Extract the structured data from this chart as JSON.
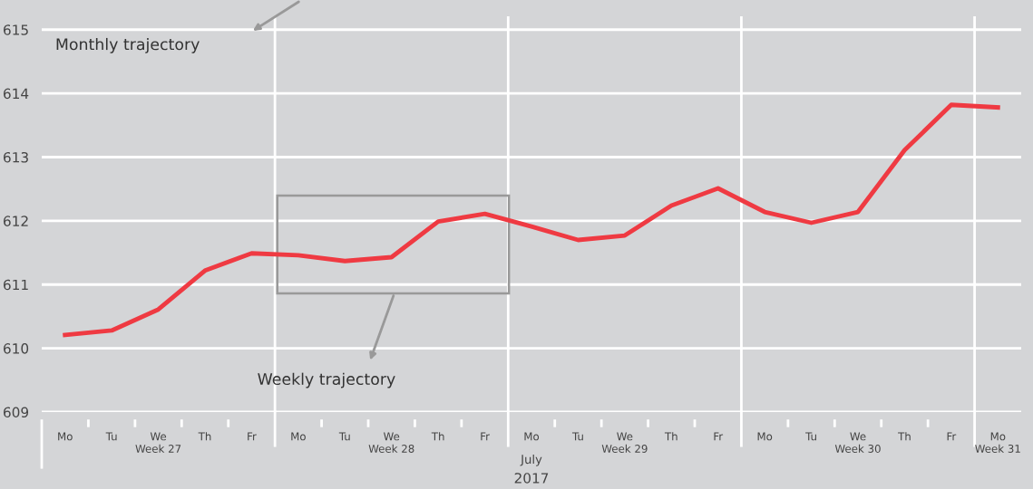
{
  "chart_data": {
    "type": "line",
    "categories": [
      "Mo",
      "Tu",
      "We",
      "Th",
      "Fr",
      "Mo",
      "Tu",
      "We",
      "Th",
      "Fr",
      "Mo",
      "Tu",
      "We",
      "Th",
      "Fr",
      "Mo",
      "Tu",
      "We",
      "Th",
      "Fr",
      "Mo"
    ],
    "series": [
      {
        "color": "#ef3a42",
        "values": [
          610.21,
          610.28,
          610.61,
          611.22,
          611.49,
          611.46,
          611.37,
          611.43,
          611.99,
          612.11,
          611.91,
          611.7,
          611.77,
          612.24,
          612.51,
          612.14,
          611.97,
          612.14,
          613.11,
          613.82,
          613.78
        ]
      }
    ],
    "ylim": [
      609,
      615.21
    ],
    "yticks": [
      609,
      610,
      611,
      612,
      613,
      614,
      615
    ],
    "grid": true,
    "marker": "none",
    "line_style": "solid",
    "annotations": [
      "Monthly trajectory",
      "Weekly trajectory",
      "Week 27",
      "Week 28",
      "Week 29",
      "Week 30",
      "Week 31",
      "July",
      "2017"
    ]
  }
}
